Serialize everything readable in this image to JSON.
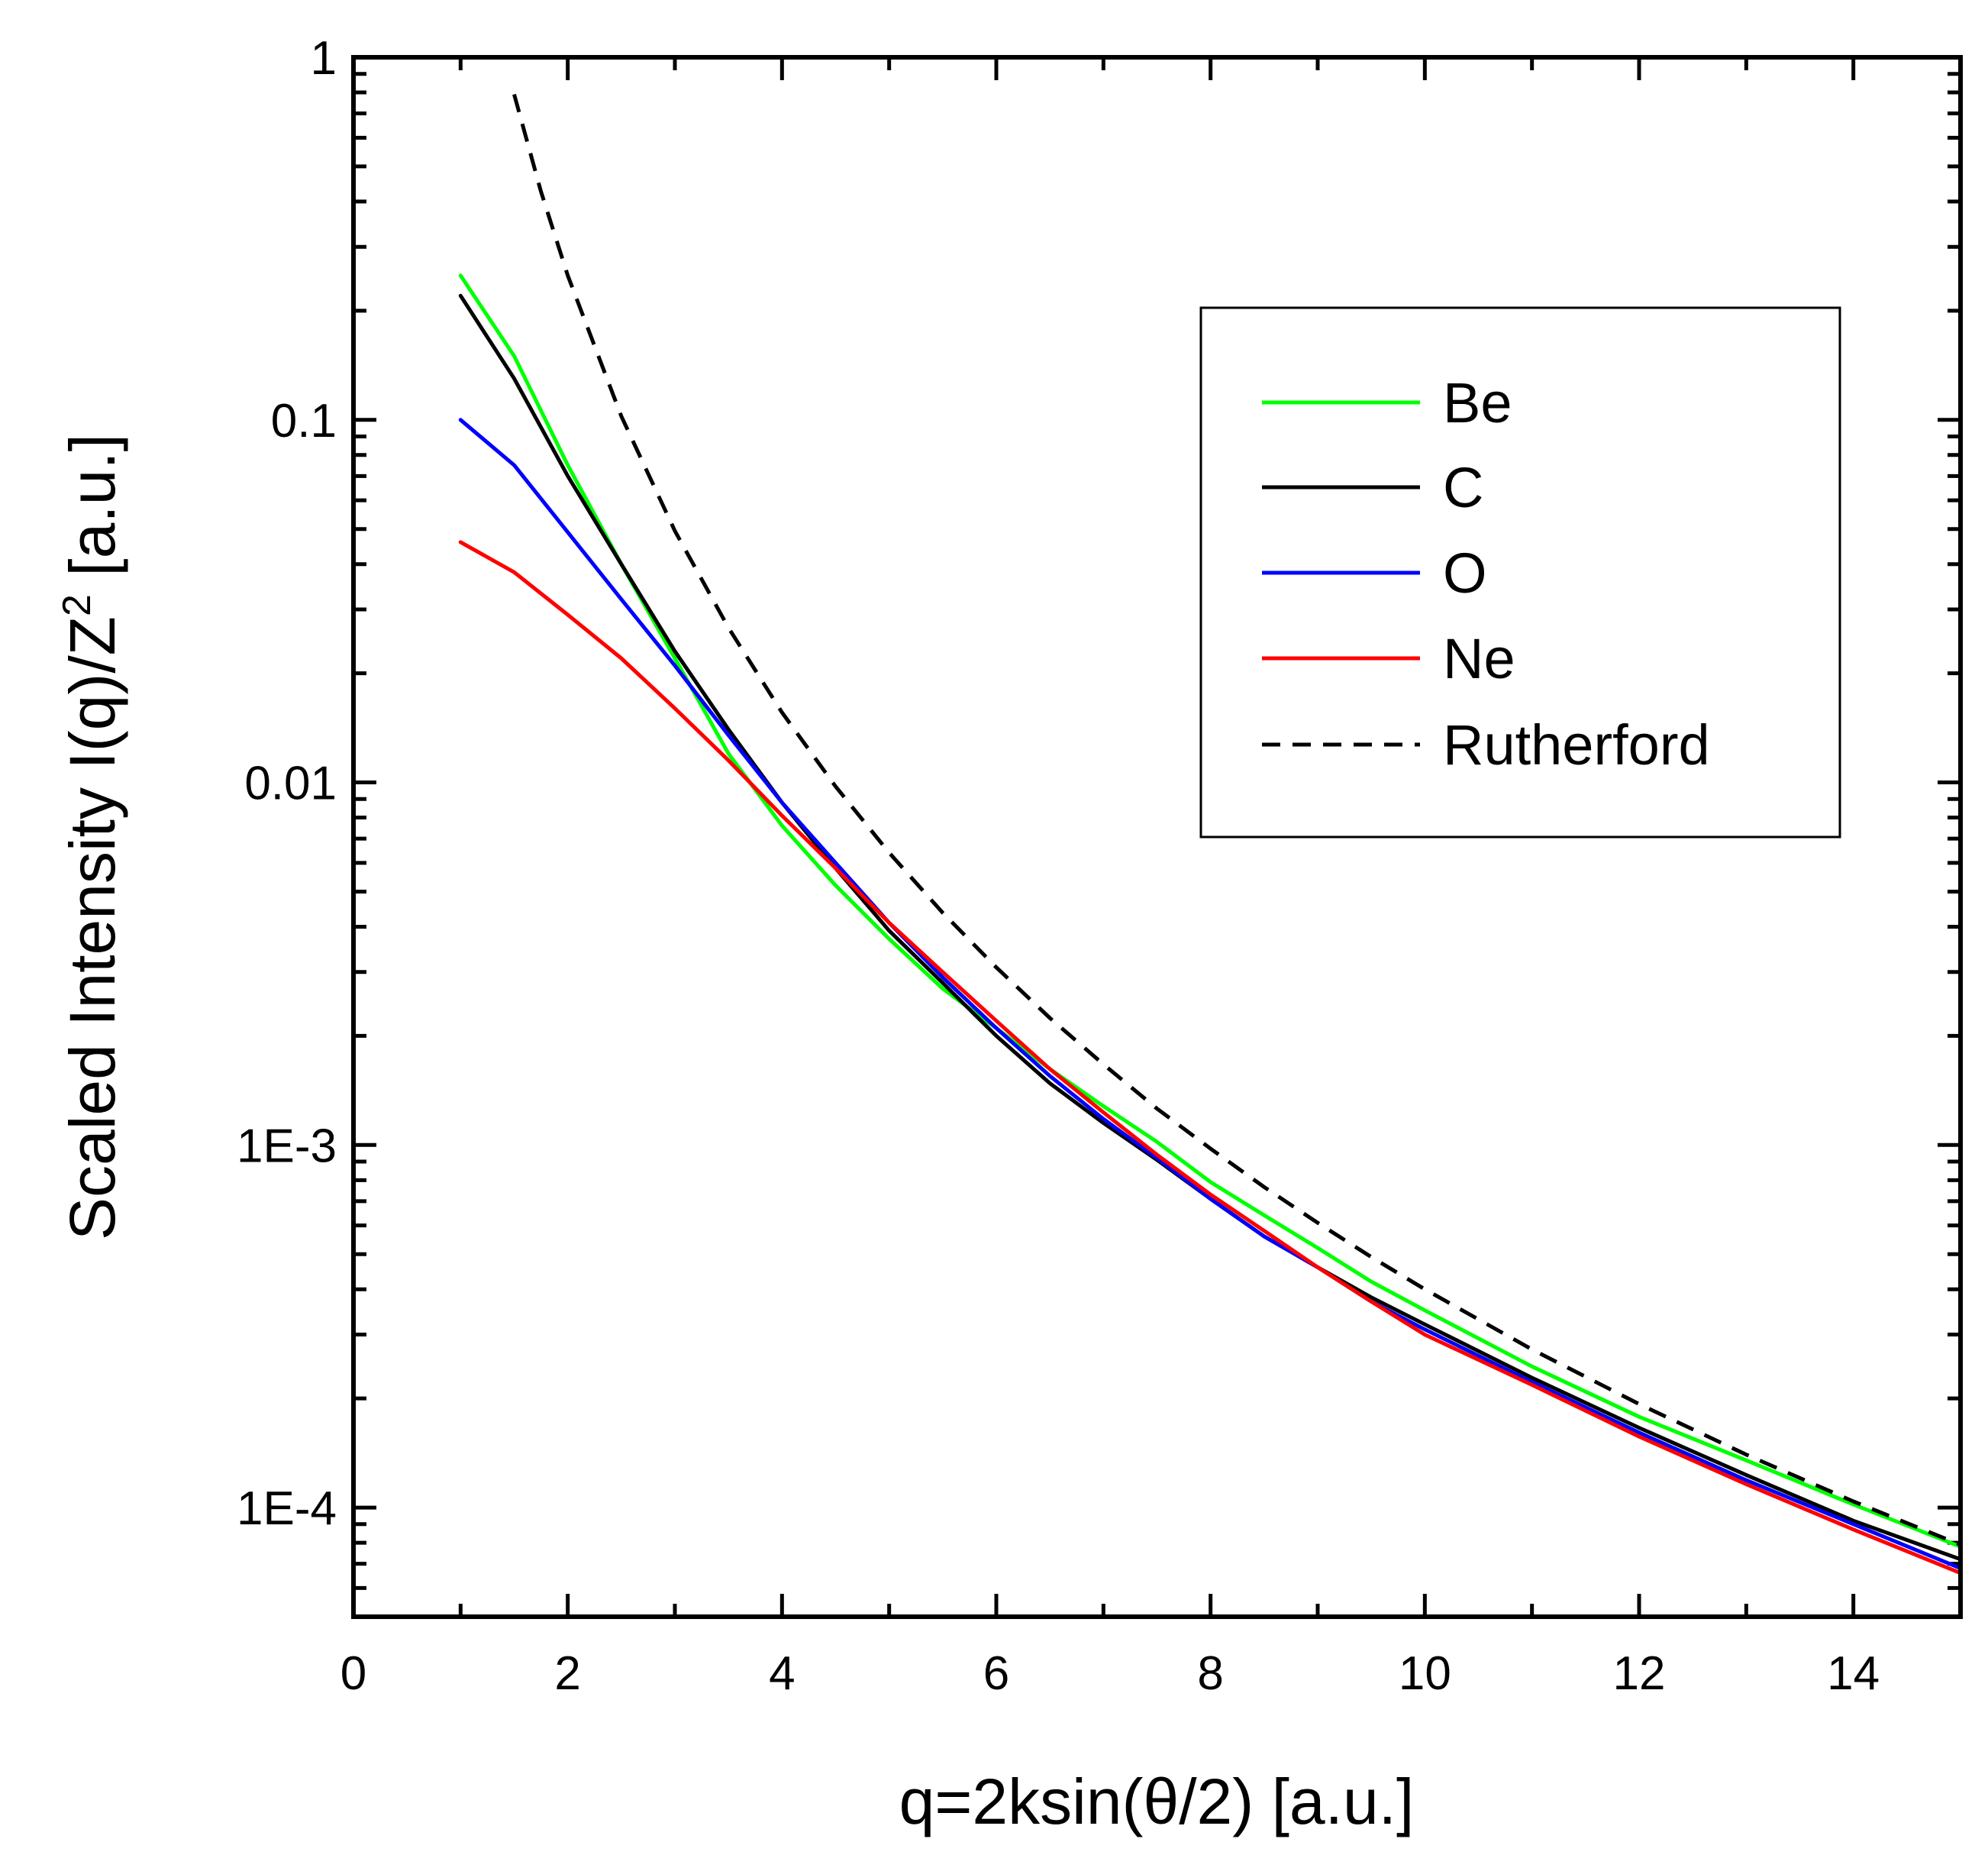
{
  "chart_data": {
    "type": "line",
    "title": "",
    "xlabel": "q=2ksin(θ/2) [a.u.]",
    "ylabel_main": "Scaled Intensity  I(q)/Z",
    "ylabel_sup": "2",
    "ylabel_tail": " [a.u.]",
    "xscale": "linear",
    "yscale": "log",
    "xlim": [
      0,
      15
    ],
    "ylim": [
      5e-05,
      1
    ],
    "xticks": [
      0,
      2,
      4,
      6,
      8,
      10,
      12,
      14
    ],
    "xtick_labels": [
      "0",
      "2",
      "4",
      "6",
      "8",
      "10",
      "12",
      "14"
    ],
    "yticks": [
      0.0001,
      0.001,
      0.01,
      0.1,
      1
    ],
    "ytick_labels": [
      "1E-4",
      "1E-3",
      "0.01",
      "0.1",
      "1"
    ],
    "legend_position": "upper-right",
    "series": [
      {
        "name": "Be",
        "color": "#00ff00",
        "dash": "solid",
        "x": [
          1,
          1.5,
          2,
          2.5,
          3,
          3.5,
          4,
          4.5,
          5,
          5.5,
          6,
          6.5,
          7,
          7.5,
          8,
          8.5,
          9,
          9.5,
          10,
          11,
          12,
          13,
          14,
          15
        ],
        "y": [
          0.25,
          0.15,
          0.075,
          0.04,
          0.022,
          0.012,
          0.0076,
          0.0052,
          0.0037,
          0.0027,
          0.0021,
          0.00162,
          0.00128,
          0.00102,
          0.00079,
          0.00064,
          0.00052,
          0.00042,
          0.00035,
          0.000245,
          0.000178,
          0.000135,
          0.000102,
          7.8e-05
        ]
      },
      {
        "name": "C",
        "color": "#000000",
        "dash": "solid",
        "x": [
          1,
          1.5,
          2,
          2.5,
          3,
          3.5,
          4,
          4.5,
          5,
          5.5,
          6,
          6.5,
          7,
          7.5,
          8,
          8.5,
          9,
          9.5,
          10,
          11,
          12,
          13,
          14,
          15
        ],
        "y": [
          0.22,
          0.13,
          0.07,
          0.04,
          0.023,
          0.014,
          0.0088,
          0.0058,
          0.0039,
          0.0028,
          0.002,
          0.00148,
          0.00115,
          0.00091,
          0.00071,
          0.00056,
          0.00046,
          0.00038,
          0.00032,
          0.000228,
          0.000166,
          0.000123,
          9.2e-05,
          7.2e-05
        ]
      },
      {
        "name": "O",
        "color": "#0000ff",
        "dash": "solid",
        "x": [
          1,
          1.5,
          2,
          2.5,
          3,
          3.5,
          4,
          4.5,
          5,
          5.5,
          6,
          6.5,
          7,
          7.5,
          8,
          8.5,
          9,
          9.5,
          10,
          11,
          12,
          13,
          14,
          15
        ],
        "y": [
          0.1,
          0.075,
          0.049,
          0.032,
          0.021,
          0.0135,
          0.0088,
          0.006,
          0.0041,
          0.0029,
          0.0021,
          0.00155,
          0.00118,
          0.00092,
          0.00071,
          0.00056,
          0.00046,
          0.00037,
          0.00031,
          0.000222,
          0.000161,
          0.000119,
          9e-05,
          6.8e-05
        ]
      },
      {
        "name": "Ne",
        "color": "#ff0000",
        "dash": "solid",
        "x": [
          1,
          1.5,
          2,
          2.5,
          3,
          3.5,
          4,
          4.5,
          5,
          5.5,
          6,
          6.5,
          7,
          7.5,
          8,
          8.5,
          9,
          9.5,
          10,
          11,
          12,
          13,
          14,
          15
        ],
        "y": [
          0.046,
          0.038,
          0.029,
          0.022,
          0.016,
          0.0115,
          0.0081,
          0.0058,
          0.0041,
          0.003,
          0.0022,
          0.00162,
          0.00123,
          0.00094,
          0.00073,
          0.00058,
          0.00046,
          0.00037,
          0.0003,
          0.000218,
          0.000157,
          0.000116,
          8.7e-05,
          6.6e-05
        ]
      },
      {
        "name": "Rutherford",
        "color": "#000000",
        "dash": "dashed",
        "x": [
          1.5,
          1.75,
          2,
          2.5,
          3,
          3.5,
          4,
          4.5,
          5,
          5.5,
          6,
          6.5,
          7,
          7.5,
          8,
          8.5,
          9,
          9.5,
          10,
          11,
          12,
          13,
          14,
          15
        ],
        "y": [
          0.79,
          0.426,
          0.25,
          0.1024,
          0.0494,
          0.0267,
          0.0156,
          0.00975,
          0.0064,
          0.00437,
          0.00309,
          0.00224,
          0.00167,
          0.00126,
          0.000977,
          0.000766,
          0.00061,
          0.000491,
          0.0004,
          0.000273,
          0.000193,
          0.00014,
          0.000104,
          7.9e-05
        ]
      }
    ]
  }
}
